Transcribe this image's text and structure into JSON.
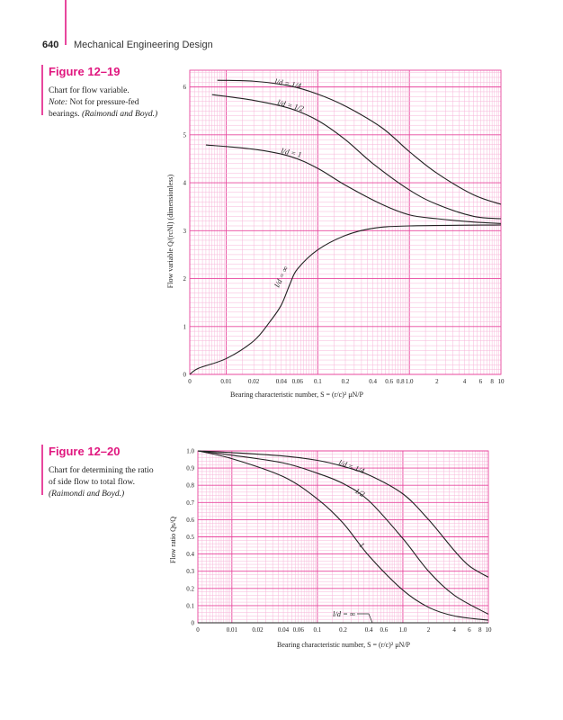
{
  "header": {
    "page_number": "640",
    "running_title": "Mechanical Engineering Design"
  },
  "figures": [
    {
      "label": "Figure 12–19",
      "caption_1": "Chart for flow variable.",
      "caption_note_label": "Note:",
      "caption_note": " Not for pressure-fed",
      "caption_2": "bearings. ",
      "caption_source": "(Raimondi and Boyd.)"
    },
    {
      "label": "Figure 12–20",
      "caption_1": "Chart for determining the ratio",
      "caption_2": "of side flow to total flow.",
      "caption_source": "(Raimondi and Boyd.)"
    }
  ],
  "colors": {
    "grid_minor": "#f7b5d8",
    "grid_major": "#e8479e",
    "curve": "#222222",
    "accent": "#e0177f"
  },
  "chart_data": [
    {
      "type": "line",
      "title": "Figure 12–19",
      "xlabel": "Bearing characteristic number, S = (r/c)² μN/P",
      "ylabel": "Flow variable Q/(rcNl) (dimensionless)",
      "xscale": "log (with 0 at left)",
      "xlim": [
        0,
        10
      ],
      "ylim": [
        0,
        6.35
      ],
      "x_ticks": [
        "0",
        "0.01",
        "0.02",
        "0.04",
        "0.06",
        "0.1",
        "0.2",
        "0.4",
        "0.6",
        "0.8",
        "1.0",
        "2",
        "4",
        "6",
        "8",
        "10"
      ],
      "y_ticks": [
        "0",
        "1",
        "2",
        "3",
        "4",
        "5",
        "6"
      ],
      "grid": true,
      "series": [
        {
          "name": "l/d = 1/4",
          "x": [
            0.008,
            0.02,
            0.05,
            0.1,
            0.2,
            0.5,
            1,
            2,
            5,
            10
          ],
          "y": [
            6.14,
            6.12,
            6.02,
            5.85,
            5.6,
            5.15,
            4.65,
            4.2,
            3.75,
            3.55
          ]
        },
        {
          "name": "l/d = 1/2",
          "x": [
            0.007,
            0.02,
            0.05,
            0.1,
            0.2,
            0.4,
            1,
            2,
            5,
            10
          ],
          "y": [
            5.84,
            5.72,
            5.55,
            5.3,
            4.9,
            4.4,
            3.85,
            3.55,
            3.3,
            3.25
          ]
        },
        {
          "name": "l/d = 1",
          "x": [
            0.006,
            0.02,
            0.05,
            0.1,
            0.2,
            0.5,
            1,
            2,
            5,
            10
          ],
          "y": [
            4.79,
            4.7,
            4.55,
            4.3,
            3.95,
            3.55,
            3.33,
            3.25,
            3.18,
            3.15
          ]
        },
        {
          "name": "l/d = ∞",
          "x": [
            0,
            0.005,
            0.01,
            0.02,
            0.03,
            0.04,
            0.05,
            0.06,
            0.1,
            0.2,
            0.4,
            1,
            10
          ],
          "y": [
            0,
            0.13,
            0.33,
            0.7,
            1.1,
            1.45,
            1.9,
            2.2,
            2.6,
            2.9,
            3.05,
            3.1,
            3.12
          ]
        }
      ]
    },
    {
      "type": "line",
      "title": "Figure 12–20",
      "xlabel": "Bearing characteristic number, S = (r/c)² μN/P",
      "ylabel": "Flow ratio Qs/Q",
      "xscale": "log (with 0 at left)",
      "xlim": [
        0,
        10
      ],
      "ylim": [
        0,
        1.0
      ],
      "x_ticks": [
        "0",
        "0.01",
        "0.02",
        "0.04",
        "0.06",
        "0.1",
        "0.2",
        "0.4",
        "0.6",
        "1.0",
        "2",
        "4",
        "6",
        "8",
        "10"
      ],
      "y_ticks": [
        "0",
        "0.1",
        "0.2",
        "0.3",
        "0.4",
        "0.5",
        "0.6",
        "0.7",
        "0.8",
        "0.9",
        "1.0"
      ],
      "grid": true,
      "series": [
        {
          "name": "l/d = 1/4",
          "x": [
            0,
            0.01,
            0.04,
            0.1,
            0.2,
            0.4,
            1,
            2,
            4,
            6,
            10
          ],
          "y": [
            1.0,
            0.99,
            0.97,
            0.945,
            0.91,
            0.86,
            0.75,
            0.6,
            0.42,
            0.33,
            0.265
          ]
        },
        {
          "name": "1/2",
          "x": [
            0,
            0.01,
            0.04,
            0.1,
            0.2,
            0.4,
            1,
            2,
            4,
            10
          ],
          "y": [
            1.0,
            0.975,
            0.93,
            0.87,
            0.81,
            0.71,
            0.49,
            0.3,
            0.16,
            0.05
          ]
        },
        {
          "name": "1",
          "x": [
            0,
            0.01,
            0.04,
            0.1,
            0.2,
            0.4,
            1,
            2,
            4,
            10
          ],
          "y": [
            1.0,
            0.955,
            0.85,
            0.72,
            0.58,
            0.39,
            0.19,
            0.09,
            0.04,
            0.015
          ]
        },
        {
          "name": "l/d = ∞",
          "x": [
            0,
            10
          ],
          "y": [
            0,
            0
          ]
        }
      ]
    }
  ]
}
